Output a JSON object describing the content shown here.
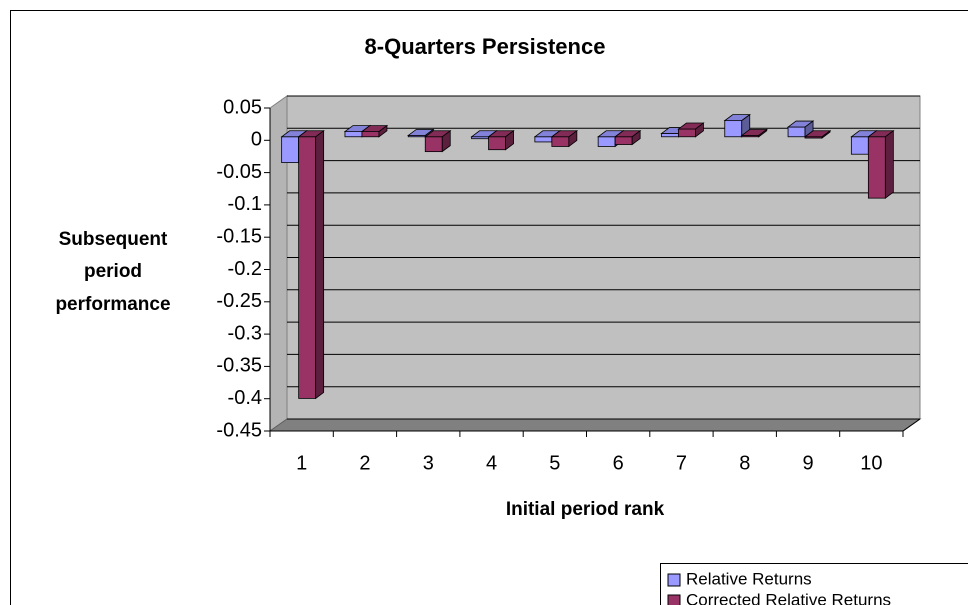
{
  "chart_data": {
    "type": "bar3d",
    "title": "8-Quarters Persistence",
    "xlabel": "Initial period rank",
    "ylabel": [
      "Subsequent",
      "period",
      "performance"
    ],
    "categories": [
      "1",
      "2",
      "3",
      "4",
      "5",
      "6",
      "7",
      "8",
      "9",
      "10"
    ],
    "series": [
      {
        "name": "Relative Returns",
        "color": "#9999ff",
        "values": [
          -0.04,
          0.008,
          0.002,
          -0.003,
          -0.008,
          -0.015,
          0.005,
          0.025,
          0.015,
          -0.027
        ]
      },
      {
        "name": "Corrected Relative Returns",
        "color": "#993366",
        "values": [
          -0.405,
          0.008,
          -0.023,
          -0.02,
          -0.015,
          -0.012,
          0.012,
          0.002,
          -0.002,
          -0.095
        ]
      }
    ],
    "ylim": [
      -0.45,
      0.05
    ],
    "yticks": [
      0.05,
      0,
      -0.05,
      -0.1,
      -0.15,
      -0.2,
      -0.25,
      -0.3,
      -0.35,
      -0.4,
      -0.45
    ],
    "grid": true
  }
}
